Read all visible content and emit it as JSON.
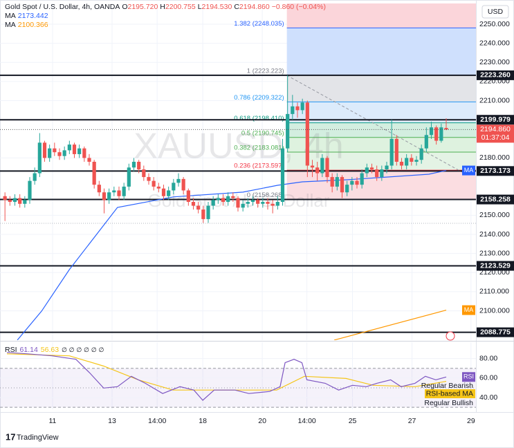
{
  "chart_data": {
    "type": "candlestick",
    "title": "Gold Spot / U.S. Dollar, 4h, OANDA",
    "legend_ohlc": [
      {
        "key": "O",
        "value": "2195.720"
      },
      {
        "key": "H",
        "value": "2200.755"
      },
      {
        "key": "L",
        "value": "2194.530"
      },
      {
        "key": "C",
        "value": "2194.860"
      }
    ],
    "change": "−0.860 (−0.04%)",
    "watermark": "XAUUSD, 4h",
    "watermark_subtitle": "Gold Spot / U.S. Dollar",
    "currency": "USD",
    "branding": "TradingView",
    "up_color": "#26a69a",
    "down_color": "#ef5350",
    "grid": true,
    "x": [
      1,
      2,
      3,
      4,
      5,
      6,
      7,
      8,
      9,
      10,
      11,
      12,
      13,
      14,
      15,
      16,
      17,
      18,
      19,
      20,
      21,
      22,
      23,
      24,
      25,
      26,
      27,
      28,
      29,
      30,
      31,
      32,
      33,
      34,
      35,
      36,
      37,
      38,
      39,
      40,
      41,
      42,
      43,
      44,
      45,
      46,
      47,
      48,
      49,
      50,
      51,
      52,
      53,
      54,
      55,
      56,
      57,
      58,
      59,
      60,
      61,
      62,
      63,
      64,
      65,
      66,
      67,
      68,
      69,
      70,
      71,
      72,
      73,
      74,
      75,
      76,
      77,
      78,
      79,
      80,
      81,
      82,
      83,
      84,
      85,
      86,
      87,
      88,
      89,
      90
    ],
    "open": [
      2160,
      2158,
      2157,
      2159,
      2156,
      2158,
      2168,
      2172,
      2188,
      2180,
      2185,
      2183,
      2181,
      2184,
      2187,
      2182,
      2185,
      2180,
      2178,
      2166,
      2162,
      2158,
      2162,
      2163,
      2160,
      2165,
      2175,
      2178,
      2174,
      2170,
      2168,
      2165,
      2164,
      2160,
      2163,
      2167,
      2169,
      2163,
      2157,
      2155,
      2153,
      2148,
      2155,
      2158,
      2159,
      2157,
      2160,
      2159,
      2154,
      2156,
      2157,
      2158,
      2156,
      2157,
      2156,
      2155,
      2157,
      2185,
      2203,
      2207,
      2205,
      2209,
      2176,
      2175,
      2172,
      2180,
      2170,
      2165,
      2170,
      2162,
      2166,
      2168,
      2166,
      2172,
      2175,
      2174,
      2170,
      2174,
      2176,
      2190,
      2178,
      2176,
      2180,
      2178,
      2179,
      2185,
      2192,
      2196,
      2189,
      2195.72
    ],
    "high": [
      2162,
      2160,
      2161,
      2161,
      2160,
      2170,
      2175,
      2193,
      2189,
      2187,
      2188,
      2185,
      2186,
      2189,
      2188,
      2187,
      2186,
      2182,
      2179,
      2168,
      2164,
      2164,
      2165,
      2165,
      2167,
      2177,
      2180,
      2179,
      2176,
      2172,
      2170,
      2167,
      2166,
      2165,
      2169,
      2172,
      2170,
      2164,
      2159,
      2157,
      2155,
      2157,
      2160,
      2161,
      2161,
      2162,
      2162,
      2160,
      2158,
      2159,
      2160,
      2159,
      2159,
      2159,
      2158,
      2160,
      2190,
      2223.223,
      2213,
      2209,
      2211,
      2210,
      2179,
      2178,
      2182,
      2181,
      2172,
      2172,
      2171,
      2168,
      2170,
      2170,
      2174,
      2177,
      2177,
      2176,
      2176,
      2178,
      2200,
      2192,
      2180,
      2182,
      2182,
      2181,
      2187,
      2196,
      2199,
      2197,
      2198,
      2200.755
    ],
    "low": [
      2147,
      2155,
      2155,
      2154,
      2154,
      2156,
      2166,
      2170,
      2178,
      2178,
      2181,
      2179,
      2179,
      2182,
      2180,
      2180,
      2178,
      2176,
      2164,
      2160,
      2151,
      2156,
      2160,
      2158,
      2158,
      2163,
      2173,
      2172,
      2168,
      2166,
      2163,
      2162,
      2158,
      2158,
      2161,
      2165,
      2161,
      2155,
      2153,
      2151,
      2146,
      2146,
      2153,
      2156,
      2155,
      2155,
      2157,
      2152,
      2152,
      2154,
      2155,
      2154,
      2154,
      2153,
      2151,
      2153,
      2155,
      2183,
      2200,
      2201,
      2203,
      2170,
      2170,
      2168,
      2170,
      2167,
      2162,
      2163,
      2159,
      2160,
      2163,
      2164,
      2164,
      2170,
      2172,
      2168,
      2168,
      2172,
      2174,
      2176,
      2174,
      2174,
      2176,
      2176,
      2177,
      2183,
      2190,
      2187,
      2188,
      2194.53
    ],
    "close": [
      2158,
      2157,
      2159,
      2156,
      2158,
      2168,
      2172,
      2188,
      2180,
      2185,
      2183,
      2181,
      2184,
      2187,
      2182,
      2185,
      2180,
      2178,
      2166,
      2162,
      2158,
      2162,
      2163,
      2160,
      2165,
      2175,
      2178,
      2174,
      2170,
      2168,
      2165,
      2164,
      2160,
      2163,
      2167,
      2169,
      2163,
      2157,
      2155,
      2153,
      2148,
      2155,
      2158,
      2159,
      2157,
      2160,
      2159,
      2154,
      2156,
      2157,
      2158,
      2156,
      2157,
      2156,
      2155,
      2157,
      2185,
      2203,
      2207,
      2205,
      2209,
      2176,
      2175,
      2172,
      2180,
      2170,
      2165,
      2170,
      2162,
      2166,
      2168,
      2166,
      2172,
      2175,
      2174,
      2170,
      2174,
      2176,
      2190,
      2178,
      2176,
      2180,
      2178,
      2179,
      2185,
      2192,
      2196,
      2189,
      2196,
      2194.86
    ],
    "close_label": "2194.860",
    "countdown": "01:37:04",
    "xlim": [
      0,
      96
    ],
    "xticks": [
      {
        "value": 10.6,
        "label": "11"
      },
      {
        "value": 22.6,
        "label": "13"
      },
      {
        "value": 31.7,
        "label": "14:00"
      },
      {
        "value": 40.9,
        "label": "18"
      },
      {
        "value": 52.9,
        "label": "20"
      },
      {
        "value": 61.9,
        "label": "14:00"
      },
      {
        "value": 71.1,
        "label": "25"
      },
      {
        "value": 83.1,
        "label": "27"
      },
      {
        "value": 95,
        "label": "29"
      }
    ],
    "ylim": [
      2084.65,
      2260.85
    ],
    "yticks": [
      {
        "value": 2250,
        "label": "2250.000"
      },
      {
        "value": 2240,
        "label": "2240.000"
      },
      {
        "value": 2230,
        "label": "2230.000"
      },
      {
        "value": 2220,
        "label": "2220.000"
      },
      {
        "value": 2210,
        "label": "2210.000"
      },
      {
        "value": 2180,
        "label": "2180.000"
      },
      {
        "value": 2150,
        "label": "2150.000"
      },
      {
        "value": 2140,
        "label": "2140.000"
      },
      {
        "value": 2130,
        "label": "2130.000"
      },
      {
        "value": 2120,
        "label": "2120.000"
      },
      {
        "value": 2110,
        "label": "2110.000"
      },
      {
        "value": 2100,
        "label": "2100.000"
      }
    ],
    "levels": [
      {
        "value": 2223.26,
        "label": "2223.260"
      },
      {
        "value": 2199.979,
        "label": "2199.979"
      },
      {
        "value": 2173.173,
        "label": "2173.173"
      },
      {
        "value": 2158.258,
        "label": "2158.258"
      },
      {
        "value": 2123.529,
        "label": "2123.529"
      },
      {
        "value": 2088.775,
        "label": "2088.775"
      }
    ],
    "fib": {
      "top_fill": "#fbd5da",
      "levels": [
        {
          "value": 2248.035,
          "label": "1.382 (2248.035)",
          "color": "#2962ff",
          "fill": "#cfe0fd"
        },
        {
          "value": 2223.223,
          "label": "1 (2223.223)",
          "color": "#787b86",
          "fill": "#e3e4e8"
        },
        {
          "value": 2209.322,
          "label": "0.786 (2209.322)",
          "color": "#2196f3",
          "fill": "#dcebfb"
        },
        {
          "value": 2198.41,
          "label": "0.618 (2198.410)",
          "color": "#089981",
          "fill": "#d3eee0"
        },
        {
          "value": 2190.745,
          "label": "0.5 (2190.745)",
          "color": "#4caf50",
          "fill": "#def2df"
        },
        {
          "value": 2183.081,
          "label": "0.382 (2183.081)",
          "color": "#4caf50",
          "fill": "#e4f3e5"
        },
        {
          "value": 2173.597,
          "label": "0.236 (2173.597)",
          "color": "#f23645",
          "fill": "#fbdde1"
        },
        {
          "value": 2158.268,
          "label": "0 (2158.268)",
          "color": "#787b86"
        }
      ]
    },
    "moving_averages": [
      {
        "name": "MA",
        "value_label": "2173.442",
        "color": "#2962ff",
        "x": [
          3.5,
          8.4,
          14,
          23.7,
          35,
          49,
          56,
          61,
          70,
          78,
          86.5,
          90
        ],
        "values": [
          2084.7,
          2099.9,
          2121.6,
          2154.1,
          2159.6,
          2162.1,
          2165.7,
          2167.5,
          2168.6,
          2170,
          2171.5,
          2173.442
        ]
      },
      {
        "name": "MA",
        "value_label": "2100.366",
        "color": "#ff9800",
        "x": [
          67.4,
          90
        ],
        "values": [
          2084.7,
          2100.366
        ]
      }
    ],
    "rsi": {
      "value_label": "61.14",
      "ma_value_label": "56.63",
      "placeholders": "∅ ∅ ∅ ∅ ∅ ∅",
      "ylim": [
        28,
        96.8
      ],
      "yticks": [
        {
          "value": 80,
          "label": "80.00"
        },
        {
          "value": 60,
          "label": "60.00"
        },
        {
          "value": 40,
          "label": "40.00"
        }
      ],
      "bands": [
        70,
        50,
        30
      ],
      "band_color": "#7e57c2",
      "notes": [
        "Regular Bearish",
        "Regular Bullish"
      ],
      "series": [
        {
          "name": "RSI",
          "color": "#7e57c2",
          "x": [
            1.4,
            5.6,
            10.5,
            15.3,
            18.1,
            20.9,
            23.7,
            26.5,
            29.3,
            32.8,
            36.3,
            39.1,
            40.9,
            43.2,
            47.4,
            50.2,
            54.4,
            56.5,
            57.5,
            59.3,
            60.9,
            61.9,
            65.6,
            68.3,
            71.1,
            73.9,
            76,
            78.8,
            80.9,
            83.7,
            85.8,
            87.9,
            90
          ],
          "values": [
            86.3,
            84.9,
            82.8,
            79.3,
            65.3,
            49.8,
            51.2,
            61.8,
            54.7,
            44.2,
            51.2,
            47.7,
            37.2,
            47.7,
            47.7,
            44.2,
            46.3,
            51.2,
            75.8,
            79.3,
            75.8,
            58.2,
            54.7,
            47.7,
            52.6,
            51.2,
            54.7,
            58.2,
            51.2,
            54.7,
            61.8,
            58.2,
            61.14
          ]
        },
        {
          "name": "RSI-based MA",
          "color": "#f5c518",
          "x": [
            1.4,
            14,
            20.9,
            27.9,
            34.9,
            41.8,
            48.8,
            55.8,
            61.4,
            69.8,
            75.3,
            83.7,
            90
          ],
          "values": [
            84.9,
            82.8,
            72.3,
            58.2,
            47.7,
            47.7,
            47.7,
            47.7,
            61.8,
            59.6,
            52.6,
            51.2,
            56.63
          ]
        }
      ]
    }
  }
}
